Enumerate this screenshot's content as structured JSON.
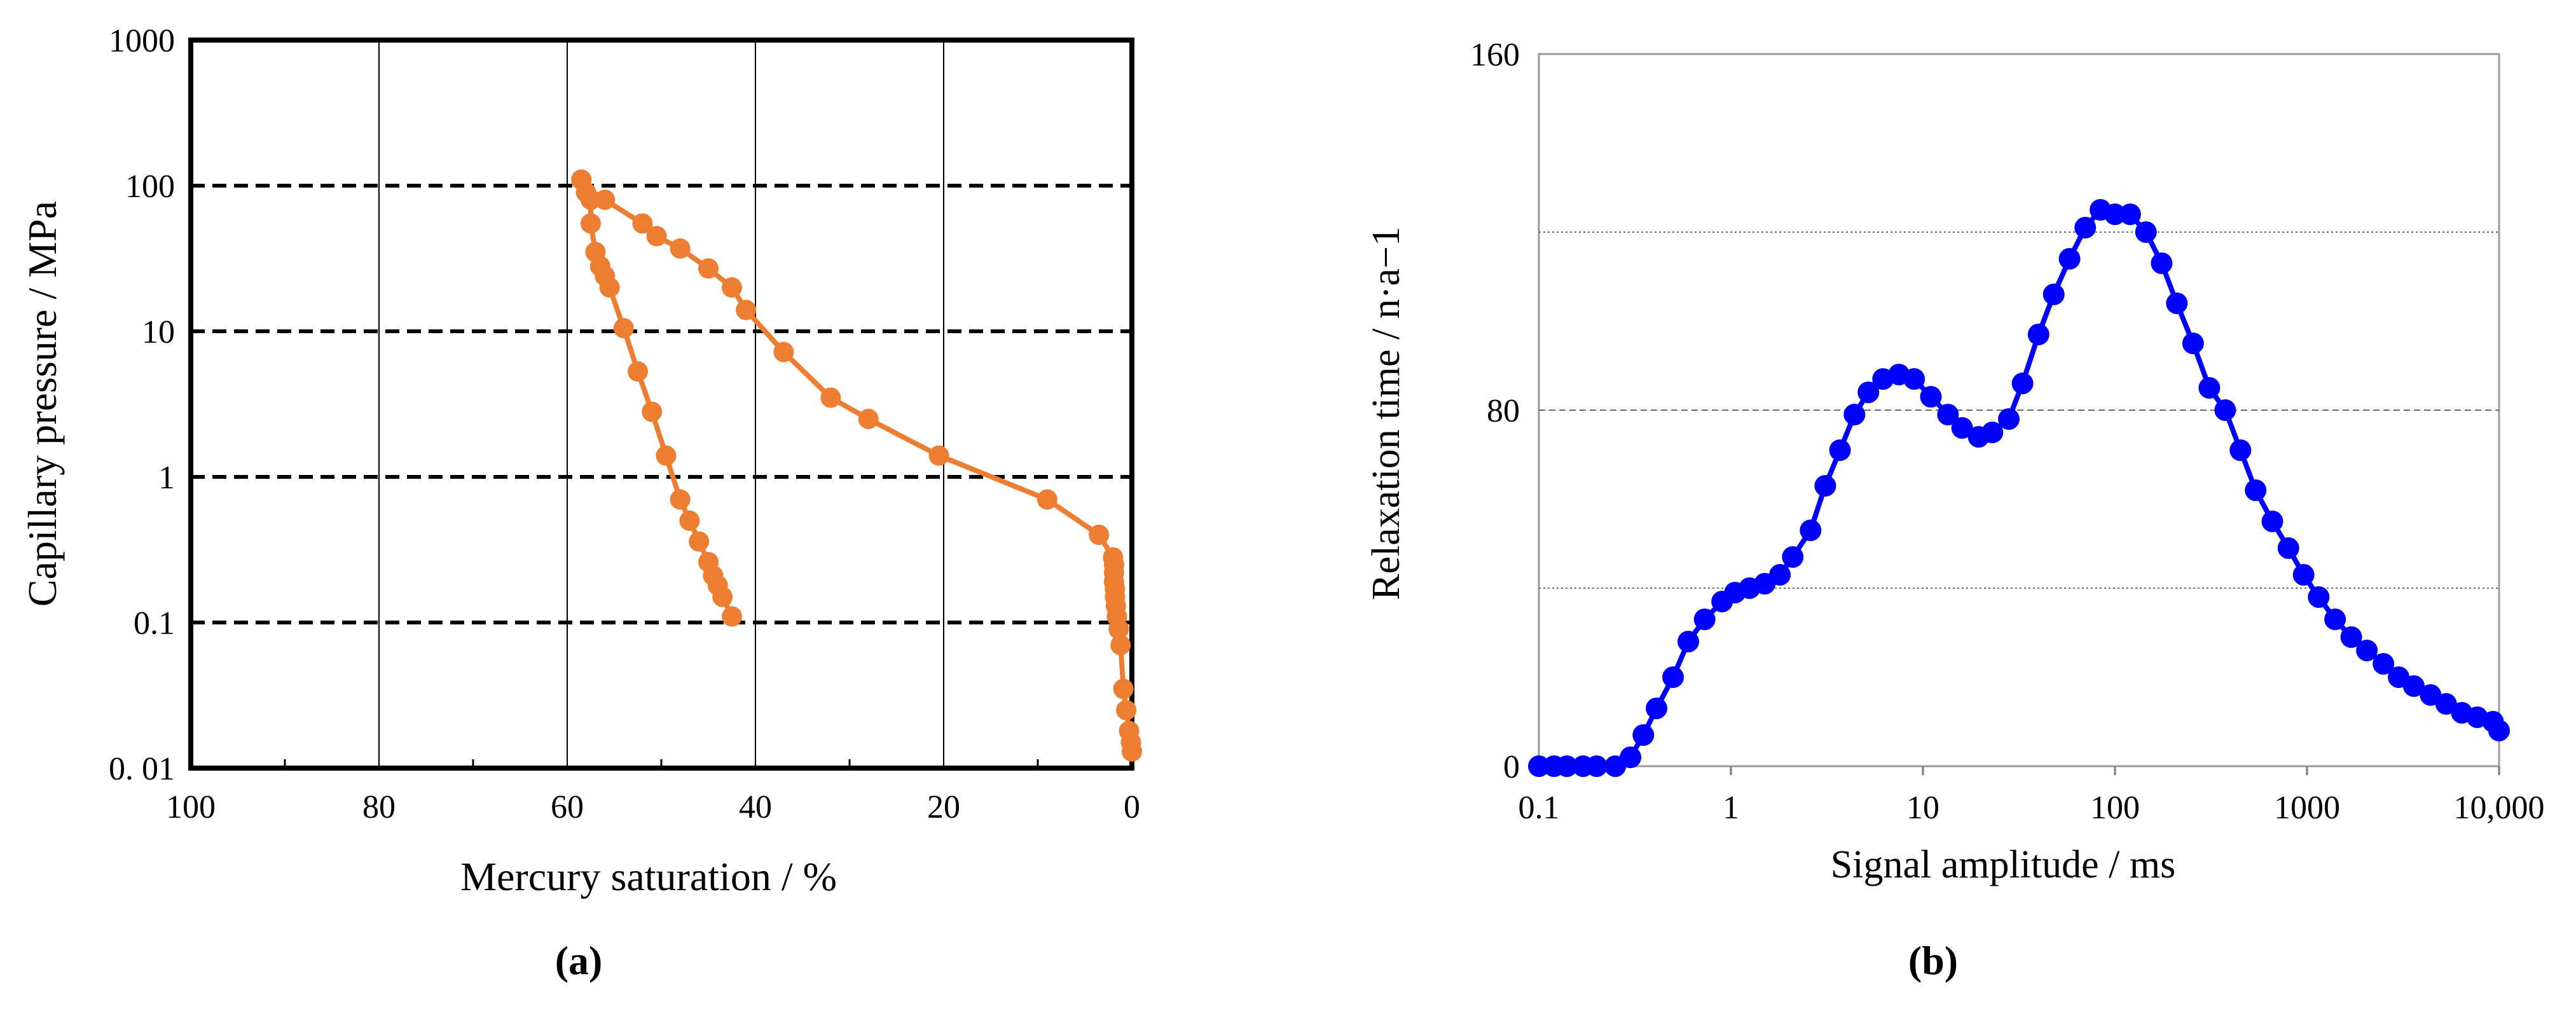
{
  "chart_data": [
    {
      "panel_label": "(a)",
      "type": "line",
      "xlabel": "Mercury saturation / %",
      "ylabel": "Capillary pressure / MPa",
      "x_reversed": true,
      "y_scale": "log",
      "xlim": [
        100,
        0
      ],
      "ylim": [
        0.01,
        1000
      ],
      "x_ticks": [
        "100",
        "80",
        "60",
        "40",
        "20",
        "0"
      ],
      "y_ticks": [
        "1000",
        "100",
        "10",
        "1",
        "0.1",
        "0. 01"
      ],
      "grid": {
        "vertical": "solid",
        "horizontal": "dashed"
      },
      "color": "#ED7D31",
      "series": [
        {
          "points": [
            [
              0,
              0.013
            ],
            [
              0.1,
              0.015
            ],
            [
              0.3,
              0.018
            ],
            [
              0.6,
              0.025
            ],
            [
              0.9,
              0.035
            ],
            [
              1.2,
              0.07
            ],
            [
              1.4,
              0.09
            ],
            [
              1.6,
              0.11
            ],
            [
              1.7,
              0.13
            ],
            [
              1.8,
              0.15
            ],
            [
              1.8,
              0.17
            ],
            [
              1.9,
              0.19
            ],
            [
              1.9,
              0.22
            ],
            [
              1.9,
              0.25
            ],
            [
              2.0,
              0.28
            ],
            [
              3.5,
              0.4
            ],
            [
              9,
              0.7
            ],
            [
              20.5,
              1.4
            ],
            [
              28,
              2.5
            ],
            [
              32,
              3.5
            ],
            [
              37,
              7.2
            ],
            [
              41,
              14
            ],
            [
              42.5,
              20
            ],
            [
              45,
              27
            ],
            [
              48,
              37
            ],
            [
              50.5,
              45
            ],
            [
              52,
              55
            ],
            [
              56,
              80
            ],
            [
              58,
              90
            ],
            [
              58.5,
              110
            ]
          ]
        },
        {
          "points": [
            [
              58.5,
              110
            ],
            [
              57.5,
              80
            ],
            [
              57.5,
              55
            ],
            [
              57,
              35
            ],
            [
              56.5,
              28
            ],
            [
              56,
              24
            ],
            [
              55.5,
              20
            ],
            [
              54,
              10.5
            ],
            [
              52.5,
              5.3
            ],
            [
              51,
              2.8
            ],
            [
              49.5,
              1.4
            ],
            [
              48,
              0.7
            ],
            [
              47,
              0.5
            ],
            [
              46,
              0.36
            ],
            [
              45,
              0.26
            ],
            [
              44.5,
              0.21
            ],
            [
              44,
              0.18
            ],
            [
              43.5,
              0.15
            ],
            [
              42.5,
              0.11
            ]
          ]
        }
      ]
    },
    {
      "panel_label": "(b)",
      "type": "line",
      "xlabel": "Signal amplitude / ms",
      "ylabel": "Relaxation time / n·a−1",
      "x_scale": "log",
      "xlim": [
        0.1,
        10000
      ],
      "ylim": [
        0,
        160
      ],
      "x_ticks": [
        "0.1",
        "1",
        "10",
        "100",
        "1000",
        "10,000"
      ],
      "y_ticks": [
        "0",
        "80",
        "160"
      ],
      "gridlines_y": [
        40,
        80,
        120
      ],
      "color": "#0000FF",
      "series": [
        {
          "points": [
            [
              0.1,
              0
            ],
            [
              0.12,
              0
            ],
            [
              0.14,
              0
            ],
            [
              0.17,
              0
            ],
            [
              0.2,
              0
            ],
            [
              0.25,
              0
            ],
            [
              0.3,
              2
            ],
            [
              0.35,
              7
            ],
            [
              0.41,
              13
            ],
            [
              0.5,
              20
            ],
            [
              0.6,
              28
            ],
            [
              0.73,
              33
            ],
            [
              0.9,
              37
            ],
            [
              1.05,
              39
            ],
            [
              1.25,
              40
            ],
            [
              1.5,
              41
            ],
            [
              1.8,
              43
            ],
            [
              2.1,
              47
            ],
            [
              2.6,
              53
            ],
            [
              3.1,
              63
            ],
            [
              3.7,
              71
            ],
            [
              4.4,
              79
            ],
            [
              5.2,
              84
            ],
            [
              6.2,
              87
            ],
            [
              7.5,
              88
            ],
            [
              9,
              87
            ],
            [
              11,
              83
            ],
            [
              13.5,
              79
            ],
            [
              16,
              76
            ],
            [
              19.5,
              74
            ],
            [
              23,
              75
            ],
            [
              28,
              78
            ],
            [
              33,
              86
            ],
            [
              40,
              97
            ],
            [
              48,
              106
            ],
            [
              58,
              114
            ],
            [
              70,
              121
            ],
            [
              84,
              125
            ],
            [
              100,
              124
            ],
            [
              120,
              124
            ],
            [
              145,
              120
            ],
            [
              175,
              113
            ],
            [
              210,
              104
            ],
            [
              255,
              95
            ],
            [
              310,
              85
            ],
            [
              375,
              80
            ],
            [
              450,
              71
            ],
            [
              540,
              62
            ],
            [
              660,
              55
            ],
            [
              800,
              49
            ],
            [
              960,
              43
            ],
            [
              1150,
              38
            ],
            [
              1400,
              33
            ],
            [
              1700,
              29
            ],
            [
              2050,
              26
            ],
            [
              2500,
              23
            ],
            [
              3000,
              20
            ],
            [
              3600,
              18
            ],
            [
              4400,
              16
            ],
            [
              5300,
              14
            ],
            [
              6400,
              12
            ],
            [
              7700,
              11
            ],
            [
              9300,
              10
            ],
            [
              10000,
              8
            ]
          ]
        }
      ]
    }
  ]
}
